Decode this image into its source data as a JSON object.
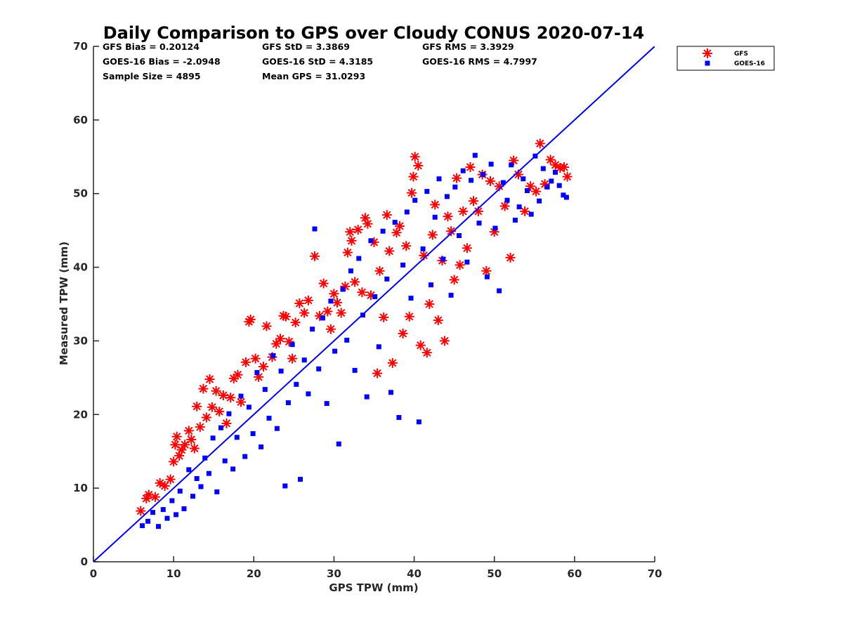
{
  "chart_data": {
    "type": "scatter",
    "title": "Daily Comparison to GPS over Cloudy CONUS 2020-07-14",
    "xlabel": "GPS TPW (mm)",
    "ylabel": "Measured TPW (mm)",
    "xlim": [
      0,
      70
    ],
    "ylim": [
      0,
      70
    ],
    "xticks": [
      0,
      10,
      20,
      30,
      40,
      50,
      60,
      70
    ],
    "yticks": [
      0,
      10,
      20,
      30,
      40,
      50,
      60,
      70
    ],
    "grid": false,
    "legend_position": "top-right outside",
    "stats": [
      [
        "GFS Bias = 0.20124",
        "GFS StD = 3.3869",
        "GFS RMS = 3.3929"
      ],
      [
        "GOES-16 Bias = -2.0948",
        "GOES-16 StD = 4.3185",
        "GOES-16 RMS = 4.7997"
      ],
      [
        "Sample Size = 4895",
        "Mean GPS = 31.0293",
        ""
      ]
    ],
    "reference_line": {
      "x": [
        0,
        70
      ],
      "y": [
        0,
        70
      ],
      "color": "#0000ff"
    },
    "series": [
      {
        "name": "GFS",
        "marker": "asterisk",
        "color": "#ff0000",
        "points": [
          [
            5.9,
            6.9
          ],
          [
            6.6,
            8.6
          ],
          [
            6.9,
            9.1
          ],
          [
            7.7,
            8.8
          ],
          [
            8.3,
            10.7
          ],
          [
            8.9,
            10.3
          ],
          [
            9.6,
            11.2
          ],
          [
            10.0,
            13.6
          ],
          [
            10.2,
            15.9
          ],
          [
            10.4,
            17.0
          ],
          [
            10.7,
            14.4
          ],
          [
            11.0,
            15.2
          ],
          [
            11.4,
            15.9
          ],
          [
            11.9,
            17.8
          ],
          [
            12.2,
            16.6
          ],
          [
            12.6,
            15.4
          ],
          [
            12.9,
            21.1
          ],
          [
            13.3,
            18.3
          ],
          [
            13.7,
            23.5
          ],
          [
            14.1,
            19.6
          ],
          [
            14.5,
            24.8
          ],
          [
            14.8,
            21.0
          ],
          [
            15.3,
            23.2
          ],
          [
            15.7,
            20.4
          ],
          [
            16.2,
            22.6
          ],
          [
            16.6,
            18.8
          ],
          [
            17.1,
            22.3
          ],
          [
            17.5,
            24.9
          ],
          [
            18.0,
            25.4
          ],
          [
            18.4,
            21.7
          ],
          [
            19.0,
            27.1
          ],
          [
            19.4,
            32.6
          ],
          [
            19.6,
            32.9
          ],
          [
            20.2,
            27.6
          ],
          [
            20.6,
            25.1
          ],
          [
            21.2,
            26.5
          ],
          [
            21.6,
            32.0
          ],
          [
            22.3,
            27.8
          ],
          [
            22.8,
            29.6
          ],
          [
            23.3,
            30.3
          ],
          [
            23.7,
            33.4
          ],
          [
            24.0,
            33.3
          ],
          [
            24.4,
            29.9
          ],
          [
            24.8,
            27.6
          ],
          [
            25.2,
            32.5
          ],
          [
            25.7,
            35.1
          ],
          [
            26.3,
            33.8
          ],
          [
            26.8,
            35.5
          ],
          [
            27.6,
            41.5
          ],
          [
            28.2,
            33.4
          ],
          [
            28.7,
            37.8
          ],
          [
            29.2,
            34.0
          ],
          [
            29.6,
            31.6
          ],
          [
            30.0,
            36.4
          ],
          [
            30.4,
            35.2
          ],
          [
            30.9,
            33.8
          ],
          [
            31.4,
            37.4
          ],
          [
            31.7,
            42.0
          ],
          [
            32.0,
            44.8
          ],
          [
            32.2,
            43.6
          ],
          [
            32.6,
            38.0
          ],
          [
            33.0,
            45.1
          ],
          [
            33.5,
            36.6
          ],
          [
            33.9,
            46.7
          ],
          [
            34.2,
            45.9
          ],
          [
            34.6,
            36.2
          ],
          [
            35.0,
            43.4
          ],
          [
            35.4,
            25.6
          ],
          [
            35.7,
            39.5
          ],
          [
            36.2,
            33.2
          ],
          [
            36.6,
            47.1
          ],
          [
            36.9,
            42.2
          ],
          [
            37.3,
            27.0
          ],
          [
            37.8,
            44.7
          ],
          [
            38.2,
            45.6
          ],
          [
            38.6,
            31.0
          ],
          [
            39.0,
            42.9
          ],
          [
            39.4,
            33.3
          ],
          [
            39.7,
            50.1
          ],
          [
            39.9,
            52.3
          ],
          [
            40.1,
            55.0
          ],
          [
            40.5,
            53.8
          ],
          [
            40.8,
            29.4
          ],
          [
            41.2,
            41.6
          ],
          [
            41.6,
            28.4
          ],
          [
            41.9,
            35.0
          ],
          [
            42.3,
            44.4
          ],
          [
            42.6,
            48.5
          ],
          [
            43.0,
            32.8
          ],
          [
            43.5,
            40.9
          ],
          [
            43.8,
            30.0
          ],
          [
            44.2,
            46.9
          ],
          [
            44.6,
            44.9
          ],
          [
            45.0,
            38.3
          ],
          [
            45.3,
            52.1
          ],
          [
            45.7,
            40.3
          ],
          [
            46.1,
            47.6
          ],
          [
            46.6,
            42.6
          ],
          [
            47.0,
            53.6
          ],
          [
            47.4,
            49.0
          ],
          [
            48.0,
            47.6
          ],
          [
            48.5,
            52.6
          ],
          [
            49.0,
            39.5
          ],
          [
            49.5,
            51.7
          ],
          [
            50.0,
            44.8
          ],
          [
            50.6,
            51.0
          ],
          [
            51.3,
            48.3
          ],
          [
            52.0,
            41.3
          ],
          [
            52.4,
            54.5
          ],
          [
            53.0,
            52.6
          ],
          [
            53.8,
            47.6
          ],
          [
            54.5,
            51.0
          ],
          [
            55.2,
            50.3
          ],
          [
            55.7,
            56.8
          ],
          [
            56.3,
            51.3
          ],
          [
            57.0,
            54.6
          ],
          [
            57.6,
            53.9
          ],
          [
            58.2,
            53.5
          ],
          [
            58.7,
            53.6
          ],
          [
            59.1,
            52.3
          ]
        ]
      },
      {
        "name": "GOES-16",
        "marker": "square",
        "color": "#0000ff",
        "points": [
          [
            6.1,
            4.9
          ],
          [
            6.8,
            5.5
          ],
          [
            7.4,
            6.7
          ],
          [
            8.1,
            4.8
          ],
          [
            8.7,
            7.1
          ],
          [
            9.2,
            5.9
          ],
          [
            9.8,
            8.3
          ],
          [
            10.3,
            6.4
          ],
          [
            10.8,
            9.6
          ],
          [
            11.3,
            7.2
          ],
          [
            11.9,
            12.5
          ],
          [
            12.4,
            8.9
          ],
          [
            12.9,
            11.3
          ],
          [
            13.4,
            10.2
          ],
          [
            13.9,
            14.1
          ],
          [
            14.4,
            12.0
          ],
          [
            14.9,
            16.8
          ],
          [
            15.4,
            9.5
          ],
          [
            15.9,
            18.2
          ],
          [
            16.4,
            13.7
          ],
          [
            16.9,
            20.1
          ],
          [
            17.4,
            12.6
          ],
          [
            17.9,
            16.9
          ],
          [
            18.4,
            22.5
          ],
          [
            18.9,
            14.3
          ],
          [
            19.4,
            21.0
          ],
          [
            19.9,
            17.4
          ],
          [
            20.4,
            25.7
          ],
          [
            20.9,
            15.6
          ],
          [
            21.4,
            23.4
          ],
          [
            21.9,
            19.5
          ],
          [
            22.4,
            28.0
          ],
          [
            22.9,
            18.1
          ],
          [
            23.4,
            25.9
          ],
          [
            23.9,
            10.3
          ],
          [
            24.3,
            21.6
          ],
          [
            24.8,
            29.5
          ],
          [
            25.3,
            24.1
          ],
          [
            25.8,
            11.2
          ],
          [
            26.3,
            27.4
          ],
          [
            26.8,
            22.8
          ],
          [
            27.3,
            31.6
          ],
          [
            27.6,
            45.2
          ],
          [
            28.1,
            26.2
          ],
          [
            28.6,
            33.1
          ],
          [
            29.1,
            21.5
          ],
          [
            29.6,
            35.4
          ],
          [
            30.1,
            28.6
          ],
          [
            30.6,
            16.0
          ],
          [
            31.1,
            37.0
          ],
          [
            31.6,
            30.1
          ],
          [
            32.1,
            39.5
          ],
          [
            32.6,
            26.0
          ],
          [
            33.1,
            41.2
          ],
          [
            33.6,
            33.5
          ],
          [
            34.1,
            22.4
          ],
          [
            34.6,
            43.6
          ],
          [
            35.1,
            36.0
          ],
          [
            35.6,
            29.2
          ],
          [
            36.1,
            44.9
          ],
          [
            36.6,
            38.4
          ],
          [
            37.1,
            23.0
          ],
          [
            37.6,
            46.1
          ],
          [
            38.1,
            19.6
          ],
          [
            38.6,
            40.3
          ],
          [
            39.1,
            47.5
          ],
          [
            39.6,
            35.8
          ],
          [
            40.1,
            49.1
          ],
          [
            40.6,
            19.0
          ],
          [
            41.1,
            42.5
          ],
          [
            41.6,
            50.3
          ],
          [
            42.1,
            37.6
          ],
          [
            42.6,
            46.8
          ],
          [
            43.1,
            52.0
          ],
          [
            43.6,
            41.1
          ],
          [
            44.1,
            49.6
          ],
          [
            44.6,
            36.2
          ],
          [
            45.1,
            50.9
          ],
          [
            45.6,
            44.3
          ],
          [
            46.1,
            53.1
          ],
          [
            46.6,
            40.7
          ],
          [
            47.1,
            51.8
          ],
          [
            47.6,
            55.2
          ],
          [
            48.1,
            46.0
          ],
          [
            48.6,
            52.6
          ],
          [
            49.1,
            38.7
          ],
          [
            49.6,
            54.0
          ],
          [
            50.1,
            45.3
          ],
          [
            50.6,
            36.8
          ],
          [
            51.1,
            51.5
          ],
          [
            51.6,
            49.1
          ],
          [
            52.1,
            53.9
          ],
          [
            52.6,
            46.4
          ],
          [
            53.1,
            48.2
          ],
          [
            53.6,
            52.0
          ],
          [
            54.1,
            50.4
          ],
          [
            54.6,
            47.2
          ],
          [
            55.1,
            55.1
          ],
          [
            55.6,
            49.0
          ],
          [
            56.1,
            53.4
          ],
          [
            56.6,
            50.9
          ],
          [
            57.1,
            51.7
          ],
          [
            57.6,
            52.9
          ],
          [
            58.1,
            51.1
          ],
          [
            58.6,
            49.8
          ],
          [
            59.0,
            49.5
          ]
        ]
      }
    ]
  }
}
